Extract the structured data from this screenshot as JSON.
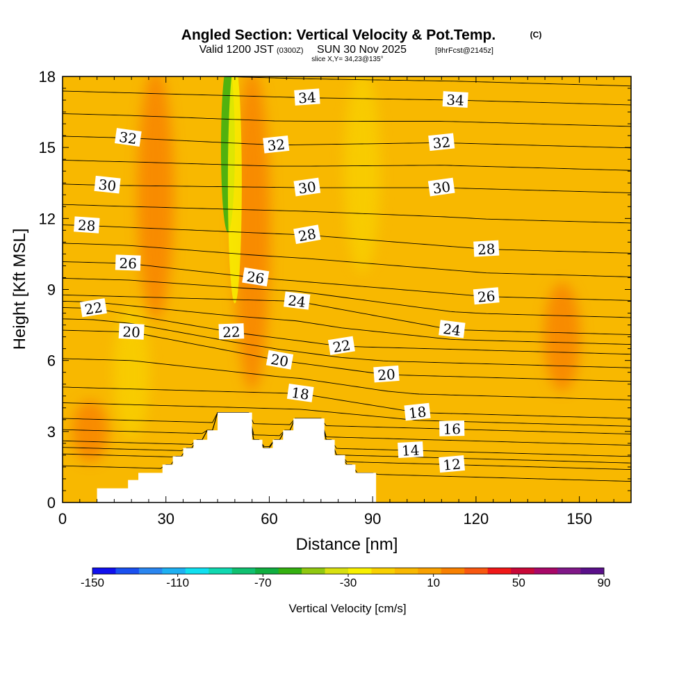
{
  "header": {
    "title": "Angled Section: Vertical Velocity & Pot.Temp.",
    "copyright": "(C)",
    "valid_prefix": "Valid 1200 JST",
    "valid_zulu": "(0300Z)",
    "valid_date": "SUN 30 Nov 2025",
    "forecast": "[9hrFcst@2145z]",
    "slice": "slice X,Y= 34,23@135°"
  },
  "colorbar": {
    "label": "Vertical Velocity [cm/s]",
    "tick_labels": [
      "-150",
      "-110",
      "-70",
      "-30",
      "10",
      "50",
      "90"
    ],
    "colors": [
      "#1010ee",
      "#1a50f0",
      "#2a86f0",
      "#1eb0f2",
      "#10e0f0",
      "#10d8b0",
      "#10c070",
      "#10ae40",
      "#34b010",
      "#90c810",
      "#d8e010",
      "#f8f000",
      "#f8d000",
      "#f8b800",
      "#f8a000",
      "#f88000",
      "#f85810",
      "#f01818",
      "#c80838",
      "#a80868",
      "#801888",
      "#5a108a"
    ]
  },
  "chart_data": {
    "type": "heatmap",
    "title": "Angled Section: Vertical Velocity & Pot.Temp.",
    "xlabel": "Distance [nm]",
    "ylabel": "Height [Kft MSL]",
    "xlim": [
      0,
      165
    ],
    "ylim": [
      0,
      18
    ],
    "x_ticks": [
      0,
      30,
      60,
      90,
      120,
      150
    ],
    "y_ticks": [
      0,
      3,
      6,
      9,
      12,
      15,
      18
    ],
    "grid": false,
    "colorbar": {
      "label": "Vertical Velocity [cm/s]",
      "min": -150,
      "max": 90,
      "ticks": [
        -150,
        -110,
        -70,
        -30,
        10,
        50,
        90
      ],
      "units": "cm/s"
    },
    "terrain_profile": {
      "x": [
        10,
        16,
        19,
        22,
        29,
        32,
        35,
        38,
        42,
        45,
        52,
        55,
        58,
        61,
        64,
        67,
        73,
        76,
        79,
        82,
        85,
        91
      ],
      "height": [
        0.6,
        0.6,
        0.95,
        1.25,
        1.6,
        1.95,
        2.3,
        2.65,
        3.05,
        3.8,
        3.8,
        2.65,
        2.3,
        2.65,
        3.05,
        3.55,
        3.55,
        2.65,
        2.0,
        1.6,
        1.25,
        0.6
      ]
    },
    "vertical_velocity_features": [
      {
        "x": 48,
        "height_range": [
          12,
          18
        ],
        "value": -55,
        "kind": "downdraft"
      },
      {
        "x": 50,
        "height_range": [
          9,
          18
        ],
        "value": -30,
        "kind": "downdraft"
      },
      {
        "x": 55,
        "height_range": [
          5,
          18
        ],
        "value": 20,
        "kind": "updraft"
      },
      {
        "x": 27,
        "height_range": [
          8,
          18
        ],
        "value": 15,
        "kind": "updraft"
      },
      {
        "x": 8,
        "height_range": [
          2,
          4
        ],
        "value": 20,
        "kind": "updraft"
      },
      {
        "x": 145,
        "height_range": [
          5,
          9
        ],
        "value": 15,
        "kind": "updraft"
      },
      {
        "x": 20,
        "height_range": [
          3,
          8
        ],
        "value": -15,
        "kind": "downdraft"
      },
      {
        "x": 87,
        "height_range": [
          10,
          18
        ],
        "value": -18,
        "kind": "downdraft"
      }
    ],
    "potential_temperature_contours": [
      {
        "level": 12,
        "label_at": {
          "x": 113,
          "height": 1.6
        }
      },
      {
        "level": 14,
        "label_at": {
          "x": 101,
          "height": 2.2
        }
      },
      {
        "level": 16,
        "label_at": {
          "x": 113,
          "height": 3.1
        }
      },
      {
        "level": 18,
        "label_at": {
          "x": 69,
          "height": 4.6
        }
      },
      {
        "level": 18,
        "label_at": {
          "x": 103,
          "height": 3.8
        }
      },
      {
        "level": 20,
        "label_at": {
          "x": 20,
          "height": 7.2
        }
      },
      {
        "level": 20,
        "label_at": {
          "x": 63,
          "height": 6.0
        }
      },
      {
        "level": 20,
        "label_at": {
          "x": 94,
          "height": 5.4
        }
      },
      {
        "level": 22,
        "label_at": {
          "x": 9,
          "height": 8.2
        }
      },
      {
        "level": 22,
        "label_at": {
          "x": 49,
          "height": 7.2
        }
      },
      {
        "level": 22,
        "label_at": {
          "x": 81,
          "height": 6.6
        }
      },
      {
        "level": 24,
        "label_at": {
          "x": 68,
          "height": 8.5
        }
      },
      {
        "level": 24,
        "label_at": {
          "x": 113,
          "height": 7.3
        }
      },
      {
        "level": 26,
        "label_at": {
          "x": 19,
          "height": 10.1
        }
      },
      {
        "level": 26,
        "label_at": {
          "x": 56,
          "height": 9.5
        }
      },
      {
        "level": 26,
        "label_at": {
          "x": 123,
          "height": 8.7
        }
      },
      {
        "level": 28,
        "label_at": {
          "x": 7,
          "height": 11.7
        }
      },
      {
        "level": 28,
        "label_at": {
          "x": 71,
          "height": 11.3
        }
      },
      {
        "level": 28,
        "label_at": {
          "x": 123,
          "height": 10.7
        }
      },
      {
        "level": 30,
        "label_at": {
          "x": 13,
          "height": 13.4
        }
      },
      {
        "level": 30,
        "label_at": {
          "x": 71,
          "height": 13.3
        }
      },
      {
        "level": 30,
        "label_at": {
          "x": 110,
          "height": 13.3
        }
      },
      {
        "level": 32,
        "label_at": {
          "x": 19,
          "height": 15.4
        }
      },
      {
        "level": 32,
        "label_at": {
          "x": 62,
          "height": 15.1
        }
      },
      {
        "level": 32,
        "label_at": {
          "x": 110,
          "height": 15.2
        }
      },
      {
        "level": 34,
        "label_at": {
          "x": 71,
          "height": 17.1
        }
      },
      {
        "level": 34,
        "label_at": {
          "x": 114,
          "height": 17.0
        }
      }
    ]
  }
}
